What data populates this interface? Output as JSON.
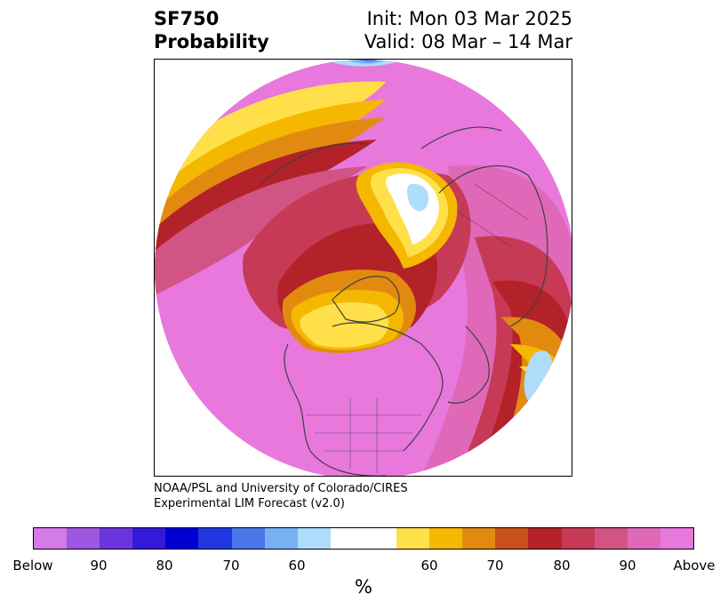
{
  "title": {
    "left_line1": "SF750",
    "left_line2": "Probability",
    "right_line1": "Init: Mon 03 Mar 2025",
    "right_line2": "Valid: 08 Mar – 14 Mar"
  },
  "credit": {
    "line1": "NOAA/PSL and University of Colorado/CIRES",
    "line2": "Experimental LIM Forecast (v2.0)"
  },
  "colorbar": {
    "colors": [
      "#d57be7",
      "#9f57e2",
      "#6b35dd",
      "#3419d8",
      "#0000d4",
      "#2138e0",
      "#4a78ea",
      "#76b2f3",
      "#aedcfb",
      "#ffffff",
      "#ffffff",
      "#ffe04a",
      "#f5b800",
      "#e28a10",
      "#c8521a",
      "#b22228",
      "#c63a55",
      "#d15484",
      "#df69b8",
      "#e878dc"
    ],
    "tick_labels": [
      "Below",
      "90",
      "80",
      "70",
      "60",
      "60",
      "70",
      "80",
      "90",
      "Above"
    ],
    "unit": "%"
  },
  "map": {
    "projection": "north-polar-stereographic",
    "palette": {
      "above_max": "#e878dc",
      "p90": "#df69b8",
      "p85": "#d15484",
      "p80": "#c63a55",
      "p75": "#b22228",
      "p70": "#c8521a",
      "p65": "#e28a10",
      "p60": "#f5b800",
      "p55": "#ffe04a",
      "below55": "#aedcfb",
      "below60": "#76b2f3",
      "below70": "#4a78ea",
      "coast": "#404040"
    }
  }
}
